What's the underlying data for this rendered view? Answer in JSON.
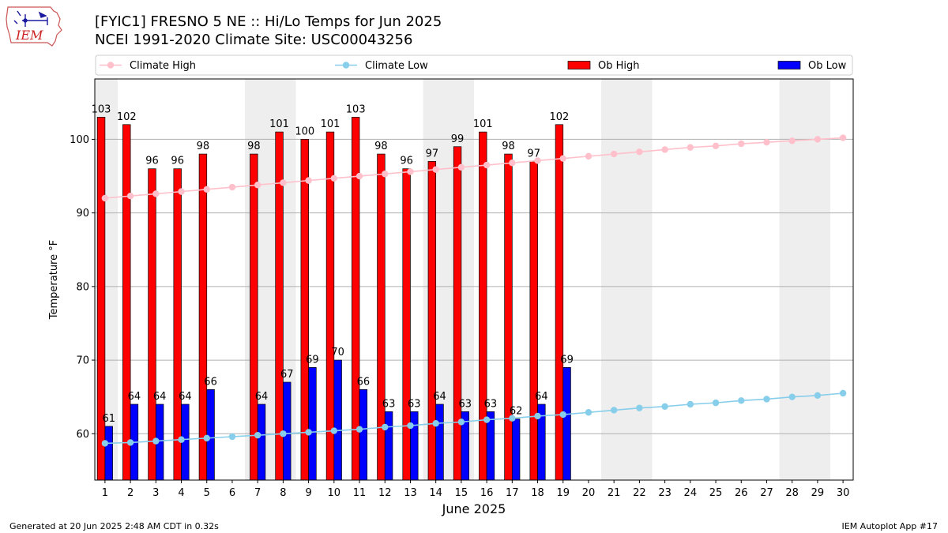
{
  "header": {
    "title_line1": "[FYIC1] FRESNO 5 NE :: Hi/Lo Temps for Jun 2025",
    "title_line2": "NCEI 1991-2020 Climate Site: USC00043256",
    "logo_text": "IEM"
  },
  "footer": {
    "left": "Generated at 20 Jun 2025 2:48 AM CDT in 0.32s",
    "right": "IEM Autoplot App #17"
  },
  "colors": {
    "ob_high": "#ff0000",
    "ob_low": "#0000ff",
    "climate_high": "#ffc0cb",
    "climate_low": "#87ceeb",
    "weekend_band": "#eeeeee",
    "grid": "#b0b0b0"
  },
  "chart_data": {
    "type": "bar",
    "xlabel": "June 2025",
    "ylabel": "Temperature °F",
    "ylim": [
      53.7,
      108.2
    ],
    "xlim": [
      0.6,
      30.4
    ],
    "yticks": [
      60,
      70,
      80,
      90,
      100
    ],
    "grid": "y",
    "legend_position": "top",
    "categories": [
      "1",
      "2",
      "3",
      "4",
      "5",
      "6",
      "7",
      "8",
      "9",
      "10",
      "11",
      "12",
      "13",
      "14",
      "15",
      "16",
      "17",
      "18",
      "19",
      "20",
      "21",
      "22",
      "23",
      "24",
      "25",
      "26",
      "27",
      "28",
      "29",
      "30"
    ],
    "weekend_bands": [
      [
        0.5,
        1.5
      ],
      [
        6.5,
        8.5
      ],
      [
        13.5,
        15.5
      ],
      [
        20.5,
        22.5
      ],
      [
        27.5,
        29.5
      ]
    ],
    "series": [
      {
        "name": "Climate High",
        "kind": "line",
        "values": [
          92.0,
          92.3,
          92.6,
          92.9,
          93.2,
          93.5,
          93.8,
          94.1,
          94.4,
          94.7,
          95.0,
          95.3,
          95.6,
          95.9,
          96.2,
          96.5,
          96.8,
          97.1,
          97.4,
          97.7,
          98.0,
          98.3,
          98.6,
          98.9,
          99.1,
          99.4,
          99.6,
          99.8,
          100.0,
          100.2
        ]
      },
      {
        "name": "Climate Low",
        "kind": "line",
        "values": [
          58.7,
          58.8,
          59.0,
          59.2,
          59.4,
          59.6,
          59.8,
          60.0,
          60.2,
          60.4,
          60.6,
          60.9,
          61.1,
          61.4,
          61.6,
          61.9,
          62.1,
          62.4,
          62.6,
          62.9,
          63.2,
          63.5,
          63.7,
          64.0,
          64.2,
          64.5,
          64.7,
          65.0,
          65.2,
          65.5
        ]
      },
      {
        "name": "Ob High",
        "kind": "bar",
        "values": [
          103,
          102,
          96,
          96,
          98,
          null,
          98,
          101,
          100,
          101,
          103,
          98,
          96,
          97,
          99,
          101,
          98,
          97,
          102,
          null,
          null,
          null,
          null,
          null,
          null,
          null,
          null,
          null,
          null,
          null
        ]
      },
      {
        "name": "Ob Low",
        "kind": "bar",
        "values": [
          61,
          64,
          64,
          64,
          66,
          null,
          64,
          67,
          69,
          70,
          66,
          63,
          63,
          64,
          63,
          63,
          62,
          64,
          69,
          null,
          null,
          null,
          null,
          null,
          null,
          null,
          null,
          null,
          null,
          null
        ]
      }
    ]
  }
}
